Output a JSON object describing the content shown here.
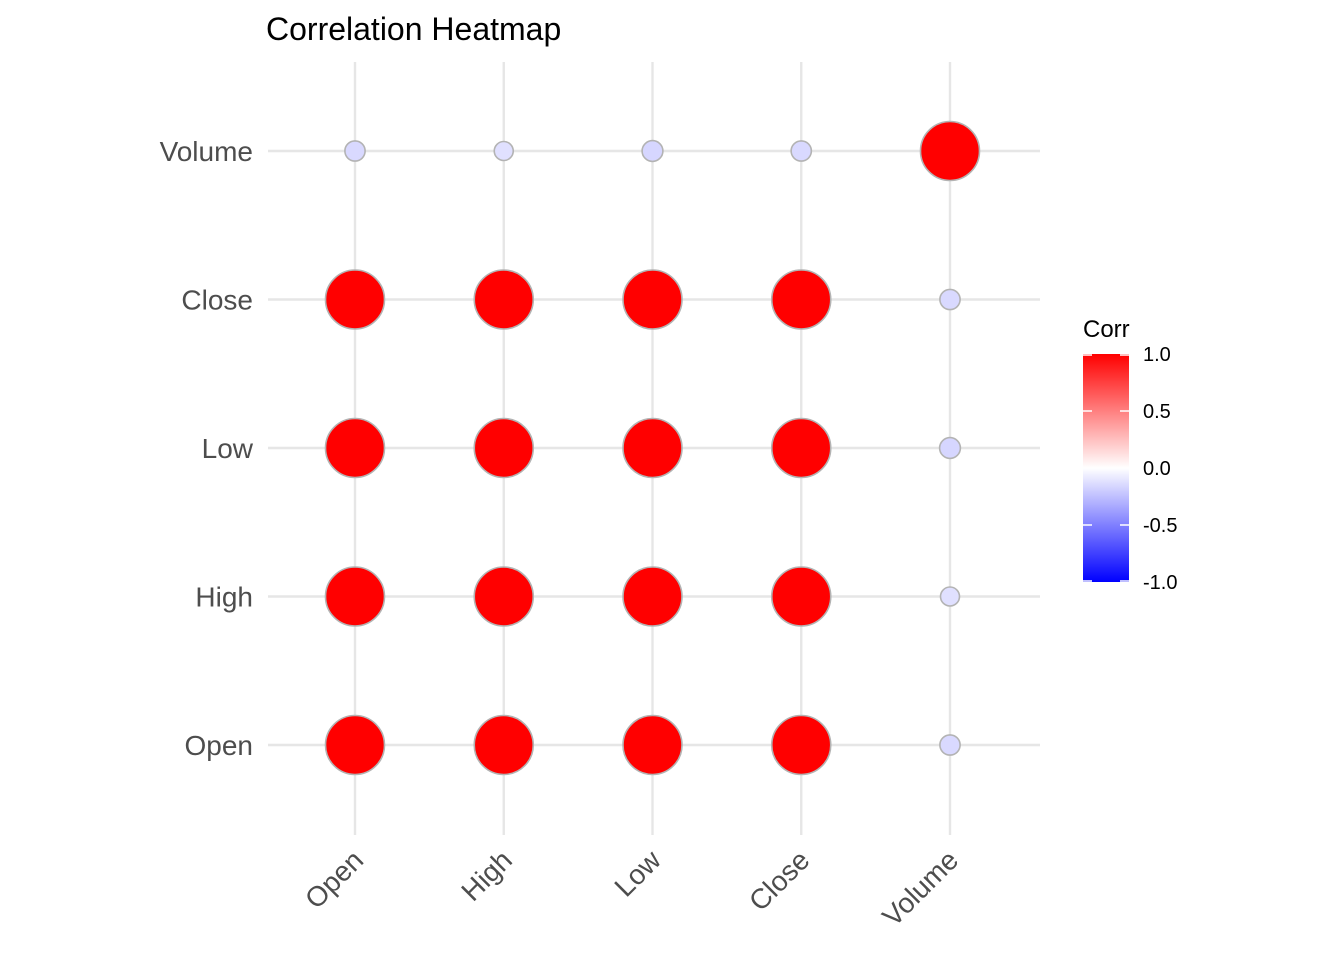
{
  "chart_data": {
    "type": "heatmap",
    "title": "Correlation Heatmap",
    "x_categories": [
      "Open",
      "High",
      "Low",
      "Close",
      "Volume"
    ],
    "y_categories": [
      "Open",
      "High",
      "Low",
      "Close",
      "Volume"
    ],
    "matrix": [
      [
        1.0,
        1.0,
        1.0,
        1.0,
        -0.15
      ],
      [
        1.0,
        1.0,
        1.0,
        1.0,
        -0.12
      ],
      [
        1.0,
        1.0,
        1.0,
        1.0,
        -0.16
      ],
      [
        1.0,
        1.0,
        1.0,
        1.0,
        -0.15
      ],
      [
        -0.15,
        -0.12,
        -0.16,
        -0.15,
        1.0
      ]
    ],
    "encoding": "circle size and fill color by correlation",
    "legend": {
      "title": "Corr",
      "placement": "right",
      "breaks": [
        "1.0",
        "0.5",
        "0.0",
        "-0.5",
        "-1.0"
      ],
      "limits": [
        -1,
        1
      ]
    },
    "colors": {
      "low": "#0000ff",
      "mid": "#ffffff",
      "high": "#ff0000",
      "point_border": "#b3b3b3"
    },
    "grid": true
  }
}
